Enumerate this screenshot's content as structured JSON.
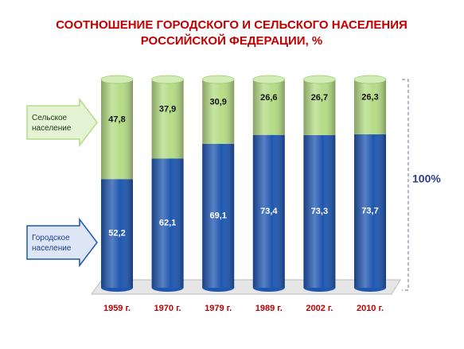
{
  "chart_data": {
    "type": "stacked-bar",
    "title": "СООТНОШЕНИЕ ГОРОДСКОГО И СЕЛЬСКОГО НАСЕЛЕНИЯ",
    "subtitle": "РОССИЙСКОЙ ФЕДЕРАЦИИ, %",
    "categories": [
      "1959 г.",
      "1970 г.",
      "1979 г.",
      "1989 г.",
      "2002 г.",
      "2010 г."
    ],
    "series": [
      {
        "name": "Городское население",
        "color": "#1f57b0",
        "values": [
          52.2,
          62.1,
          69.1,
          73.4,
          73.3,
          73.7
        ],
        "value_labels": [
          "52,2",
          "62,1",
          "69,1",
          "73,4",
          "73,3",
          "73,7"
        ]
      },
      {
        "name": "Сельское население",
        "color": "#b5dc86",
        "values": [
          47.8,
          37.9,
          30.9,
          26.6,
          26.7,
          26.3
        ],
        "value_labels": [
          "47,8",
          "37,9",
          "30,9",
          "26,6",
          "26,7",
          "26,3"
        ]
      }
    ],
    "ylim": [
      0,
      100
    ],
    "annotation": "100%"
  }
}
